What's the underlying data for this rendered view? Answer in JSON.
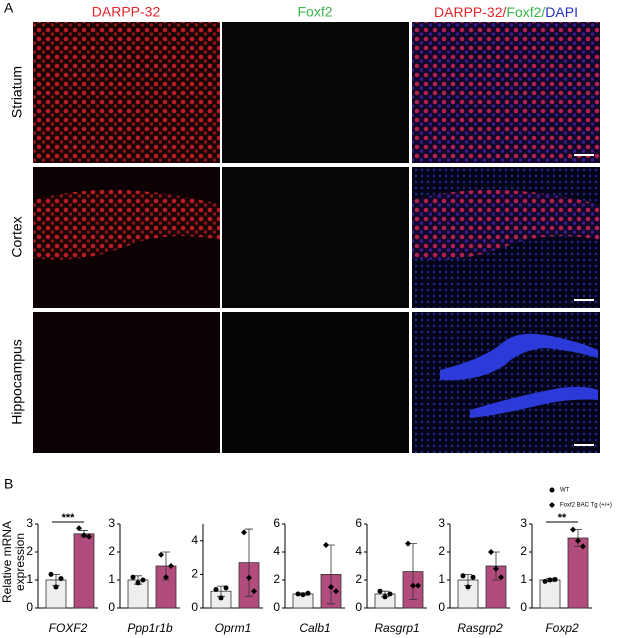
{
  "panel_labels": [
    "A",
    "B"
  ],
  "panel_a": {
    "columns": [
      "DARPP-32",
      "Foxf2"
    ],
    "merge_title": [
      "DARPP-32/",
      "Foxf2/",
      "DAPI"
    ],
    "rows": [
      "Striatum",
      "Cortex",
      "Hippocampus"
    ]
  },
  "panel_b": {
    "y_label": [
      "Relative mRNA",
      "expression"
    ],
    "legend": [
      {
        "name": "WT",
        "color": "#eeeeee"
      },
      {
        "name": "Foxf2 BAC Tg (+/+)",
        "color": "#b24c7c"
      }
    ]
  },
  "chart_data": [
    {
      "type": "bar",
      "label": "FOXF2",
      "values": [
        1.0,
        2.65
      ],
      "errors": [
        0.2,
        0.12
      ],
      "points": [
        [
          1.2,
          0.75,
          1.05
        ],
        [
          2.85,
          2.6,
          2.55
        ]
      ],
      "ylim": [
        0,
        3
      ],
      "yticks": [
        0,
        1,
        2,
        3
      ],
      "annotation": "***"
    },
    {
      "type": "bar",
      "label": "Ppp1r1b",
      "values": [
        1.0,
        1.5
      ],
      "errors": [
        0.15,
        0.5
      ],
      "points": [
        [
          1.1,
          0.9,
          1.0
        ],
        [
          1.9,
          1.1,
          1.5
        ]
      ],
      "ylim": [
        0,
        3
      ],
      "yticks": [
        0,
        1,
        2,
        3
      ]
    },
    {
      "type": "bar",
      "label": "Oprm1",
      "values": [
        1.0,
        2.7
      ],
      "errors": [
        0.3,
        2.0
      ],
      "points": [
        [
          1.1,
          0.6,
          1.2
        ],
        [
          4.5,
          1.8,
          1.0
        ]
      ],
      "ylim": [
        0,
        5
      ],
      "yticks": [
        0,
        2,
        4
      ]
    },
    {
      "type": "bar",
      "label": "Calb1",
      "values": [
        1.0,
        2.4
      ],
      "errors": [
        0.08,
        2.1
      ],
      "points": [
        [
          1.0,
          0.95,
          1.05
        ],
        [
          4.5,
          1.5,
          1.2
        ]
      ],
      "ylim": [
        0,
        6
      ],
      "yticks": [
        0,
        2,
        4,
        6
      ]
    },
    {
      "type": "bar",
      "label": "Rasgrp1",
      "values": [
        1.0,
        2.6
      ],
      "errors": [
        0.2,
        2.0
      ],
      "points": [
        [
          1.2,
          0.8,
          1.0
        ],
        [
          4.6,
          1.6,
          1.6
        ]
      ],
      "ylim": [
        0,
        6
      ],
      "yticks": [
        0,
        2,
        4,
        6
      ]
    },
    {
      "type": "bar",
      "label": "Rasgrp2",
      "values": [
        1.0,
        1.5
      ],
      "errors": [
        0.2,
        0.5
      ],
      "points": [
        [
          1.15,
          0.75,
          1.1
        ],
        [
          2.0,
          1.4,
          1.1
        ]
      ],
      "ylim": [
        0,
        3
      ],
      "yticks": [
        0,
        1,
        2,
        3
      ]
    },
    {
      "type": "bar",
      "label": "Foxp2",
      "values": [
        1.0,
        2.5
      ],
      "errors": [
        0.05,
        0.3
      ],
      "points": [
        [
          0.95,
          1.0,
          1.02
        ],
        [
          2.8,
          2.4,
          2.2
        ]
      ],
      "ylim": [
        0,
        3
      ],
      "yticks": [
        0,
        1,
        2,
        3
      ],
      "annotation": "**"
    }
  ]
}
